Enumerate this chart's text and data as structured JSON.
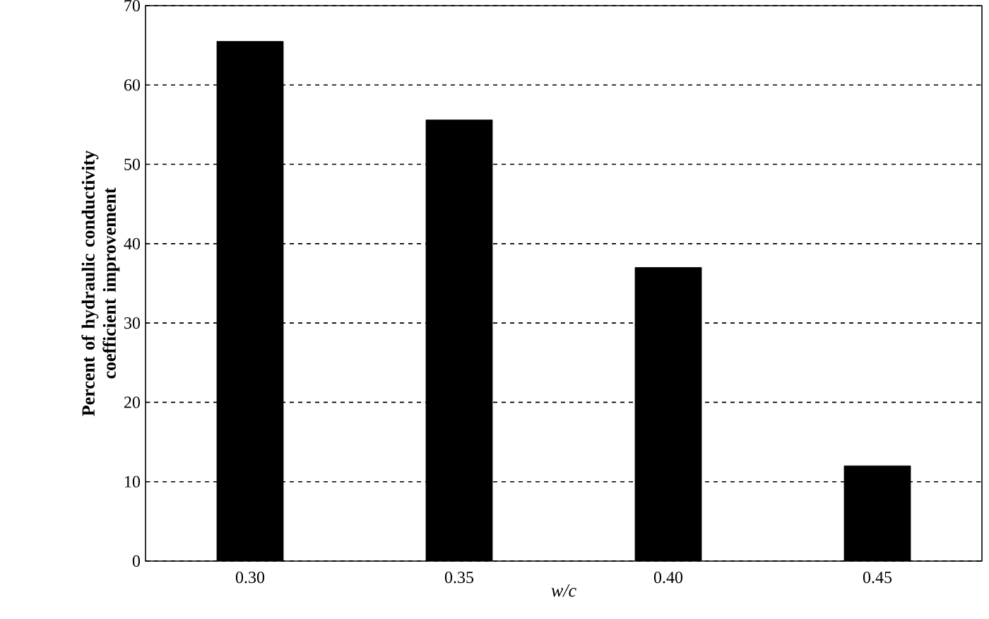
{
  "chart_data": {
    "type": "bar",
    "xlabel": "w/c",
    "ylabel": "Percent of hydraulic conductivity coefficient improvement",
    "categories": [
      "0.30",
      "0.35",
      "0.40",
      "0.45"
    ],
    "values": [
      65.5,
      55.6,
      37,
      12
    ],
    "color": "#000000",
    "ylim": [
      0,
      70
    ],
    "yticks": [
      0,
      10,
      20,
      30,
      40,
      50,
      60,
      70
    ],
    "grid": "y"
  }
}
